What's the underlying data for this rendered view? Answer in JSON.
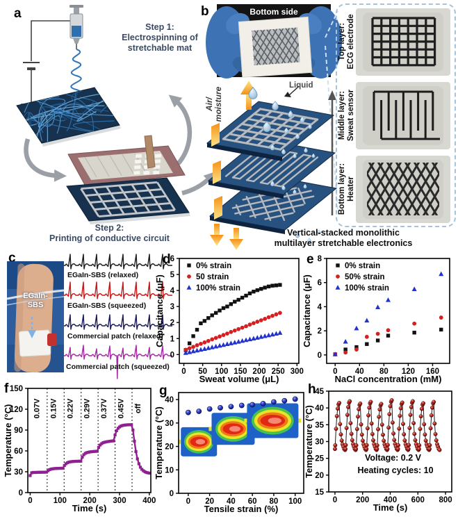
{
  "panel_letters": {
    "a": "a",
    "b": "b",
    "c": "c",
    "d": "d",
    "e": "e",
    "f": "f",
    "g": "g",
    "h": "h"
  },
  "panel_a": {
    "step1": "Step 1:\nElectrospinning of\nstretchable mat",
    "step2": "Step 2:\nPrinting of conductive circuit"
  },
  "panel_b": {
    "photo_caption": "Bottom side",
    "air_moisture_label": "Air/\nmoisture",
    "liquid_label": "Liquid",
    "caption": "Vertical-stacked monolithic\nmultilayer stretchable electronics",
    "layer_labels": [
      "Top layer:\nECG electrode",
      "Middle layer:\nSweat sensor",
      "Bottom layer:\nHeater"
    ]
  },
  "panel_c": {
    "device_label": "EGaIn-\nSBS",
    "traces": [
      {
        "label": "EGaIn-SBS (relaxed)",
        "color": "#1a1a1a",
        "irregular": false
      },
      {
        "label": "EGaIn-SBS (squeezed)",
        "color": "#c81616",
        "irregular": false
      },
      {
        "label": "Commercial patch (relaxed)",
        "color": "#181858",
        "irregular": false
      },
      {
        "label": "Commercial patch (squeezed)",
        "color": "#a825a8",
        "irregular": true
      }
    ]
  },
  "chart_data": [
    {
      "id": "d",
      "type": "scatter",
      "xlabel": "Sweat volume (μL)",
      "ylabel": "Capacitance (μF)",
      "xlim": [
        -12,
        305
      ],
      "ylim": [
        -0.55,
        6
      ],
      "xticks": [
        0,
        50,
        100,
        150,
        200,
        250,
        300
      ],
      "yticks": [
        0,
        1,
        2,
        3,
        4,
        5,
        6
      ],
      "legend": [
        {
          "label": "0% strain",
          "marker": "square",
          "color": "#111111"
        },
        {
          "label": "50 strain",
          "marker": "circle",
          "color": "#d42020"
        },
        {
          "label": "100% strain",
          "marker": "triangle",
          "color": "#2233cc"
        }
      ],
      "series": [
        {
          "name": "0% strain",
          "marker": "square",
          "color": "#111111",
          "x": [
            5,
            15,
            25,
            35,
            45,
            55,
            65,
            75,
            85,
            95,
            105,
            115,
            125,
            135,
            145,
            155,
            165,
            175,
            185,
            195,
            205,
            215,
            225,
            235,
            245,
            255
          ],
          "y": [
            0.28,
            0.7,
            1.15,
            1.55,
            1.95,
            2.1,
            2.28,
            2.45,
            2.6,
            2.75,
            2.9,
            3.0,
            3.15,
            3.3,
            3.42,
            3.55,
            3.68,
            3.82,
            3.93,
            4.02,
            4.1,
            4.18,
            4.25,
            4.3,
            4.32,
            4.35
          ]
        },
        {
          "name": "50 strain",
          "marker": "circle",
          "color": "#d42020",
          "x": [
            5,
            15,
            25,
            35,
            45,
            55,
            65,
            75,
            85,
            95,
            105,
            115,
            125,
            135,
            145,
            155,
            165,
            175,
            185,
            195,
            205,
            215,
            225,
            235,
            245,
            255
          ],
          "y": [
            0.3,
            0.39,
            0.48,
            0.58,
            0.67,
            0.76,
            0.85,
            0.95,
            1.04,
            1.13,
            1.22,
            1.31,
            1.41,
            1.5,
            1.59,
            1.68,
            1.77,
            1.87,
            1.96,
            2.05,
            2.14,
            2.23,
            2.33,
            2.42,
            2.51,
            2.6
          ]
        },
        {
          "name": "100% strain",
          "marker": "triangle",
          "color": "#2233cc",
          "x": [
            5,
            15,
            25,
            35,
            45,
            55,
            65,
            75,
            85,
            95,
            105,
            115,
            125,
            135,
            145,
            155,
            165,
            175,
            185,
            195,
            205,
            215,
            225,
            235,
            245,
            255
          ],
          "y": [
            0.1,
            0.15,
            0.2,
            0.25,
            0.3,
            0.35,
            0.4,
            0.45,
            0.5,
            0.55,
            0.6,
            0.65,
            0.7,
            0.75,
            0.8,
            0.85,
            0.9,
            0.95,
            1.0,
            1.05,
            1.1,
            1.15,
            1.2,
            1.25,
            1.3,
            1.35
          ]
        }
      ]
    },
    {
      "id": "e",
      "type": "scatter",
      "xlabel": "NaCl concentration (mM)",
      "ylabel": "Capacitance (μF)",
      "xlim": [
        -14,
        188
      ],
      "ylim": [
        -0.7,
        8
      ],
      "xticks": [
        0,
        40,
        80,
        120,
        160
      ],
      "yticks": [
        0,
        2,
        4,
        6,
        8
      ],
      "legend": [
        {
          "label": "0% strain",
          "marker": "square",
          "color": "#111111"
        },
        {
          "label": "50% strain",
          "marker": "circle",
          "color": "#d42020"
        },
        {
          "label": "100% strain",
          "marker": "triangle",
          "color": "#2233cc"
        }
      ],
      "series": [
        {
          "name": "0% strain",
          "marker": "square",
          "color": "#111111",
          "x": [
            0,
            17,
            35,
            52,
            70,
            87,
            130,
            174
          ],
          "y": [
            0.05,
            0.45,
            0.65,
            0.9,
            1.2,
            1.6,
            1.85,
            2.1
          ]
        },
        {
          "name": "50% strain",
          "marker": "circle",
          "color": "#d42020",
          "x": [
            0,
            17,
            35,
            52,
            70,
            87,
            130,
            174
          ],
          "y": [
            0.05,
            0.2,
            0.45,
            1.5,
            1.75,
            2.05,
            2.6,
            3.1
          ]
        },
        {
          "name": "100% strain",
          "marker": "triangle",
          "color": "#2233cc",
          "x": [
            0,
            17,
            35,
            52,
            70,
            87,
            130,
            174
          ],
          "y": [
            0.05,
            1.1,
            2.2,
            2.85,
            3.95,
            4.55,
            5.45,
            6.7
          ]
        }
      ]
    },
    {
      "id": "f",
      "type": "line",
      "xlabel": "Time (s)",
      "ylabel": "Temperature (°C)",
      "xlim": [
        -8,
        405
      ],
      "ylim": [
        0,
        150
      ],
      "xticks": [
        0,
        100,
        200,
        300,
        400
      ],
      "yticks": [
        0,
        30,
        60,
        90,
        120,
        150
      ],
      "vlines": [
        57,
        114,
        171,
        228,
        285,
        342
      ],
      "vline_labels": [
        {
          "text": "0.07V",
          "x": 30
        },
        {
          "text": "0.15V",
          "x": 86
        },
        {
          "text": "0.22V",
          "x": 142
        },
        {
          "text": "0.29V",
          "x": 199
        },
        {
          "text": "0.37V",
          "x": 256
        },
        {
          "text": "0.45V",
          "x": 313
        },
        {
          "text": "off",
          "x": 370
        }
      ],
      "series": [
        {
          "name": "heater temperature",
          "marker": "square",
          "color": "#8e2090",
          "line": true,
          "x": [
            0,
            5,
            10,
            15,
            20,
            25,
            30,
            35,
            40,
            45,
            50,
            55,
            60,
            65,
            70,
            75,
            80,
            85,
            90,
            95,
            100,
            105,
            110,
            115,
            120,
            125,
            130,
            135,
            140,
            145,
            150,
            155,
            160,
            165,
            170,
            175,
            180,
            185,
            190,
            195,
            200,
            205,
            210,
            215,
            220,
            225,
            230,
            235,
            240,
            245,
            250,
            255,
            260,
            265,
            270,
            275,
            280,
            285,
            290,
            295,
            300,
            305,
            310,
            315,
            320,
            325,
            330,
            335,
            340,
            345,
            350,
            355,
            360,
            365,
            370,
            375,
            380,
            385,
            390,
            395,
            400
          ],
          "y": [
            24.5,
            28.5,
            29,
            29,
            29,
            29.2,
            29.2,
            29.3,
            29.3,
            29.4,
            29.4,
            29.5,
            31.5,
            33,
            33.8,
            34.2,
            34.5,
            34.7,
            34.8,
            34.9,
            35,
            35,
            35.1,
            39,
            41.5,
            43,
            43.8,
            44.3,
            44.6,
            44.8,
            45,
            45,
            45.1,
            45.2,
            45.2,
            51,
            54.5,
            56.5,
            57.5,
            58,
            58.5,
            58.8,
            59,
            59.2,
            59.4,
            59.5,
            65,
            68.5,
            70.5,
            71.8,
            72.5,
            73,
            73.4,
            73.7,
            74,
            74.3,
            74.5,
            83,
            89,
            92.5,
            94.5,
            95.8,
            96.5,
            97,
            97.3,
            97.5,
            97.6,
            97.6,
            97.7,
            90,
            74,
            59,
            48.5,
            41.5,
            36.5,
            33.5,
            31.5,
            30,
            29,
            28.5,
            28
          ]
        }
      ]
    },
    {
      "id": "g",
      "type": "scatter",
      "xlabel": "Tensile strain (%)",
      "ylabel": "Temperature (°C)",
      "xlim": [
        -9,
        108
      ],
      "ylim": [
        0,
        43
      ],
      "xticks": [
        0,
        20,
        40,
        60,
        80,
        100
      ],
      "yticks": [
        0,
        10,
        20,
        30,
        40
      ],
      "series": [
        {
          "name": "temperature vs strain",
          "marker": "sphere-navy",
          "color": "#1a22a8",
          "x": [
            0,
            10,
            20,
            30,
            40,
            50,
            60,
            70,
            80,
            90,
            100
          ],
          "y": [
            34.5,
            35,
            36,
            36.5,
            37,
            37.5,
            37.8,
            38.3,
            39,
            39.5,
            40.2
          ]
        }
      ]
    },
    {
      "id": "h",
      "type": "line",
      "xlabel": "Time (s)",
      "ylabel": "Temperature (°C)",
      "xlim": [
        -45,
        845
      ],
      "ylim": [
        15,
        45
      ],
      "xticks": [
        0,
        200,
        400,
        600,
        800
      ],
      "yticks": [
        15,
        20,
        25,
        30,
        35,
        40,
        45
      ],
      "annotations": [
        {
          "text": "Voltage: 0.2 V",
          "x": 420,
          "y": 24.3
        },
        {
          "text": "Heating cycles: 10",
          "x": 438,
          "y": 20.6
        }
      ],
      "cycles": {
        "count": 10,
        "period_s": 76,
        "t_min": 27.5,
        "peaks": [
          41.5,
          42,
          41.3,
          41.8,
          41.2,
          42.3,
          41.6,
          42,
          41.4,
          41.8
        ],
        "rise_t": [
          2,
          8,
          14,
          20,
          26,
          31
        ],
        "rise_frac": [
          0.1,
          0.45,
          0.72,
          0.88,
          0.97,
          1.0
        ],
        "fall_t": [
          37,
          43,
          49,
          55,
          61,
          67,
          73
        ],
        "fall_frac": [
          0.55,
          0.33,
          0.2,
          0.12,
          0.07,
          0.02,
          0.0
        ]
      },
      "series": [
        {
          "name": "heating cycles",
          "marker": "sphere-red",
          "color": "#a02020",
          "from_cycles": true
        }
      ]
    }
  ]
}
